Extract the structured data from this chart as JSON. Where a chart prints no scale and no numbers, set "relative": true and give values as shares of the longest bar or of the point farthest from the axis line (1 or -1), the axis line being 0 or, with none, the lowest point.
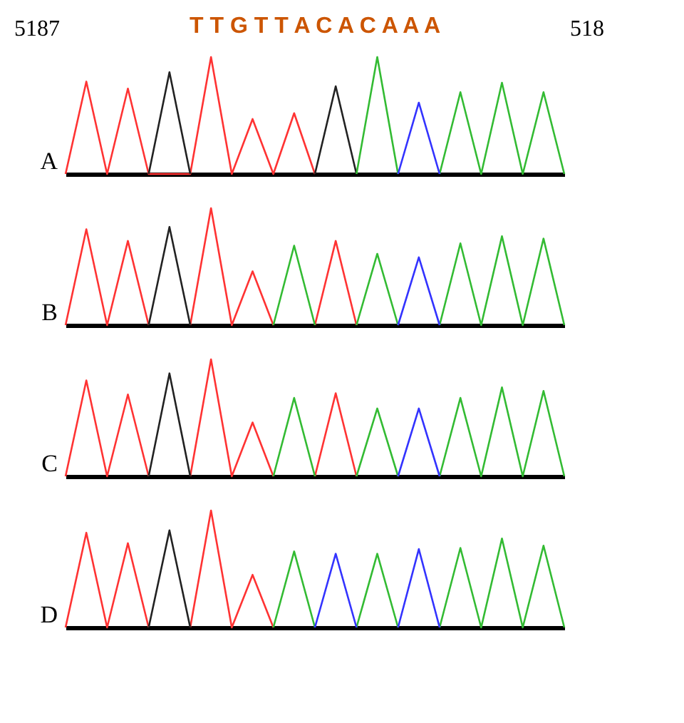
{
  "chart_data": [
    {
      "type": "line",
      "relative": true,
      "title": "T T G T T A C A C A A A",
      "annotations": [
        "5187",
        "518"
      ],
      "ylabel": "A",
      "tick_labels": false,
      "categories": [
        null,
        null,
        null,
        null,
        null,
        null,
        null,
        null,
        null,
        null,
        null,
        null,
        null,
        null,
        null,
        null,
        null,
        null,
        null,
        null,
        null,
        null,
        null,
        null,
        null
      ],
      "series": [
        {
          "color": "#ff3333",
          "values": [
            0,
            0.79,
            0,
            0.73,
            0,
            0,
            0,
            1,
            0,
            0.47,
            0,
            0.52,
            0,
            null,
            null,
            null,
            null,
            null,
            null,
            null,
            null,
            null,
            null,
            null,
            null
          ]
        },
        {
          "color": "#222222",
          "values": [
            null,
            null,
            null,
            null,
            0,
            0.87,
            0,
            null,
            null,
            null,
            null,
            null,
            0,
            0.75,
            0,
            null,
            null,
            null,
            null,
            null,
            null,
            null,
            null,
            null,
            null
          ]
        },
        {
          "color": "#33bb33",
          "values": [
            null,
            null,
            null,
            null,
            null,
            null,
            null,
            null,
            null,
            null,
            null,
            null,
            null,
            null,
            0,
            1,
            0,
            null,
            0,
            0.7,
            0,
            0.78,
            0,
            0.7,
            0
          ]
        },
        {
          "color": "#3333ff",
          "values": [
            null,
            null,
            null,
            null,
            null,
            null,
            null,
            null,
            null,
            null,
            null,
            null,
            null,
            null,
            null,
            null,
            0,
            0.61,
            0,
            null,
            null,
            null,
            null,
            null,
            null
          ]
        }
      ]
    },
    {
      "type": "line",
      "relative": true,
      "ylabel": "B",
      "tick_labels": false,
      "categories": [
        null,
        null,
        null,
        null,
        null,
        null,
        null,
        null,
        null,
        null,
        null,
        null,
        null,
        null,
        null,
        null,
        null,
        null,
        null,
        null,
        null,
        null,
        null,
        null,
        null
      ],
      "series": [
        {
          "color": "#ff3333",
          "values": [
            0,
            0.82,
            0,
            0.72,
            0,
            null,
            0,
            1,
            0,
            0.46,
            0,
            null,
            0,
            0.72,
            0,
            null,
            null,
            null,
            null,
            null,
            null,
            null,
            null,
            null,
            null
          ]
        },
        {
          "color": "#222222",
          "values": [
            null,
            null,
            null,
            null,
            0,
            0.84,
            0,
            null,
            null,
            null,
            null,
            null,
            null,
            null,
            null,
            null,
            null,
            null,
            null,
            null,
            null,
            null,
            null,
            null,
            null
          ]
        },
        {
          "color": "#33bb33",
          "values": [
            null,
            null,
            null,
            null,
            null,
            null,
            null,
            null,
            null,
            null,
            0,
            0.68,
            0,
            null,
            0,
            0.61,
            0,
            null,
            0,
            0.7,
            0,
            0.76,
            0,
            0.74,
            0
          ]
        },
        {
          "color": "#3333ff",
          "values": [
            null,
            null,
            null,
            null,
            null,
            null,
            null,
            null,
            null,
            null,
            null,
            null,
            null,
            null,
            null,
            null,
            0,
            0.58,
            0,
            null,
            null,
            null,
            null,
            null,
            null
          ]
        }
      ]
    },
    {
      "type": "line",
      "relative": true,
      "ylabel": "C",
      "tick_labels": false,
      "categories": [
        null,
        null,
        null,
        null,
        null,
        null,
        null,
        null,
        null,
        null,
        null,
        null,
        null,
        null,
        null,
        null,
        null,
        null,
        null,
        null,
        null,
        null,
        null,
        null,
        null
      ],
      "series": [
        {
          "color": "#ff3333",
          "values": [
            0,
            0.82,
            0,
            0.7,
            0,
            null,
            0,
            1,
            0,
            0.46,
            0,
            null,
            0,
            0.71,
            0,
            null,
            null,
            null,
            null,
            null,
            null,
            null,
            null,
            null,
            null
          ]
        },
        {
          "color": "#222222",
          "values": [
            null,
            null,
            null,
            null,
            0,
            0.88,
            0,
            null,
            null,
            null,
            null,
            null,
            null,
            null,
            null,
            null,
            null,
            null,
            null,
            null,
            null,
            null,
            null,
            null,
            null
          ]
        },
        {
          "color": "#33bb33",
          "values": [
            null,
            null,
            null,
            null,
            null,
            null,
            null,
            null,
            null,
            null,
            0,
            0.67,
            0,
            null,
            0,
            0.58,
            0,
            null,
            0,
            0.67,
            0,
            0.76,
            0,
            0.73,
            0
          ]
        },
        {
          "color": "#3333ff",
          "values": [
            null,
            null,
            null,
            null,
            null,
            null,
            null,
            null,
            null,
            null,
            null,
            null,
            null,
            null,
            null,
            null,
            0,
            0.58,
            0,
            null,
            null,
            null,
            null,
            null,
            null
          ]
        }
      ]
    },
    {
      "type": "line",
      "relative": true,
      "ylabel": "D",
      "tick_labels": false,
      "categories": [
        null,
        null,
        null,
        null,
        null,
        null,
        null,
        null,
        null,
        null,
        null,
        null,
        null,
        null,
        null,
        null,
        null,
        null,
        null,
        null,
        null,
        null,
        null,
        null,
        null
      ],
      "series": [
        {
          "color": "#ff3333",
          "values": [
            0,
            0.81,
            0,
            0.72,
            0,
            null,
            0,
            1,
            0,
            0.45,
            0,
            null,
            null,
            null,
            null,
            null,
            null,
            null,
            null,
            null,
            null,
            null,
            null,
            null,
            null
          ]
        },
        {
          "color": "#222222",
          "values": [
            null,
            null,
            null,
            null,
            0,
            0.83,
            0,
            null,
            null,
            null,
            null,
            null,
            null,
            null,
            null,
            null,
            null,
            null,
            null,
            null,
            null,
            null,
            null,
            null,
            null
          ]
        },
        {
          "color": "#33bb33",
          "values": [
            null,
            null,
            null,
            null,
            null,
            null,
            null,
            null,
            null,
            null,
            0,
            0.65,
            0,
            null,
            0,
            0.63,
            0,
            null,
            0,
            0.68,
            0,
            0.76,
            0,
            0.7,
            0
          ]
        },
        {
          "color": "#3333ff",
          "values": [
            null,
            null,
            null,
            null,
            null,
            null,
            null,
            null,
            null,
            null,
            null,
            null,
            0,
            0.63,
            0,
            null,
            0,
            0.67,
            0,
            null,
            null,
            null,
            null,
            null,
            null
          ]
        }
      ]
    }
  ]
}
